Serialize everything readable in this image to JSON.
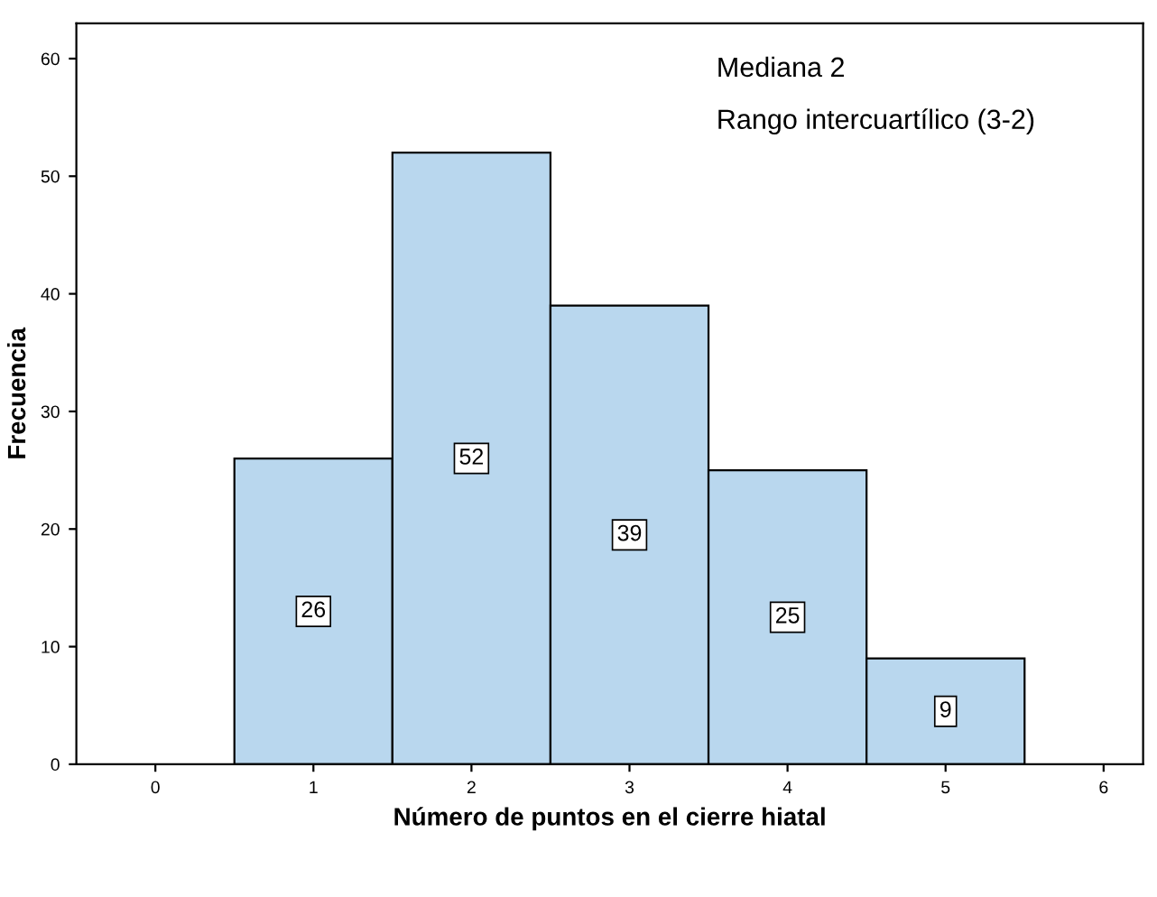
{
  "chart_data": {
    "type": "histogram",
    "xlabel": "Número de puntos en el cierre hiatal",
    "ylabel": "Frecuencia",
    "bins": [
      0.5,
      1.5,
      2.5,
      3.5,
      4.5,
      5.5
    ],
    "values": [
      26,
      52,
      39,
      25,
      9
    ],
    "color": "#b9d7ee",
    "data_labels": true,
    "xlim": [
      -0.5,
      6.25
    ],
    "ylim": [
      0,
      63
    ],
    "xticks": [
      0,
      1,
      2,
      3,
      4,
      5,
      6
    ],
    "yticks": [
      0,
      10,
      20,
      30,
      40,
      50,
      60
    ],
    "annotations": [
      "Mediana 2",
      "Rango intercuartílico (3-2)"
    ],
    "grid": false,
    "legend": false
  }
}
